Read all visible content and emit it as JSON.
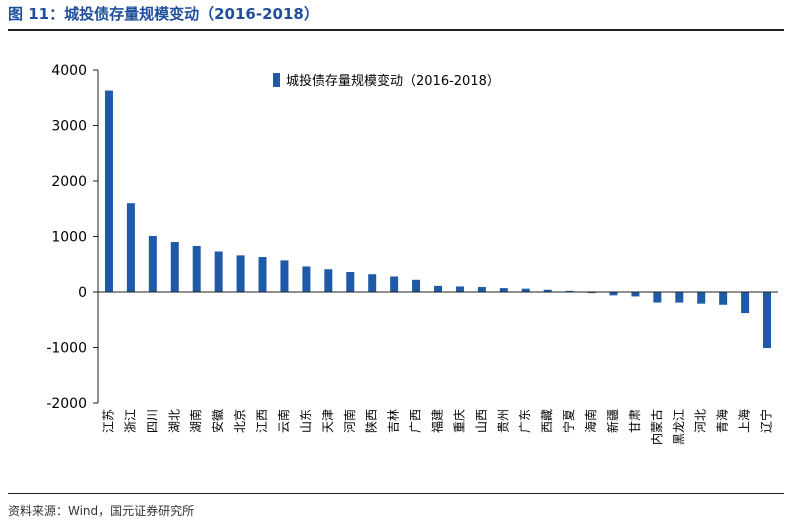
{
  "figure": {
    "title": "图 11：城投债存量规模变动（2016-2018）",
    "source": "资料来源：Wind，国元证券研究所"
  },
  "colors": {
    "bar": "#1f5aa8",
    "axis": "#1f1f1f",
    "title": "#1f4e9a"
  },
  "chart_data": {
    "type": "bar",
    "categories": [
      "江苏",
      "浙江",
      "四川",
      "湖北",
      "湖南",
      "安徽",
      "北京",
      "江西",
      "云南",
      "山东",
      "天津",
      "河南",
      "陕西",
      "吉林",
      "广西",
      "福建",
      "重庆",
      "山西",
      "贵州",
      "广东",
      "西藏",
      "宁夏",
      "海南",
      "新疆",
      "甘肃",
      "内蒙古",
      "黑龙江",
      "河北",
      "青海",
      "上海",
      "辽宁"
    ],
    "series": [
      {
        "name": "城投债存量规模变动（2016-2018）",
        "values": [
          3630,
          1600,
          1010,
          900,
          830,
          730,
          660,
          630,
          570,
          460,
          410,
          360,
          320,
          280,
          220,
          110,
          100,
          90,
          70,
          60,
          40,
          20,
          -20,
          -60,
          -80,
          -190,
          -190,
          -210,
          -230,
          -380,
          -1010
        ]
      }
    ],
    "ylim": [
      -2000,
      4000
    ],
    "yticks": [
      4000,
      3000,
      2000,
      1000,
      0,
      -1000,
      -2000
    ],
    "legend_position": "top",
    "grid": false,
    "xlabel": "",
    "ylabel": ""
  }
}
